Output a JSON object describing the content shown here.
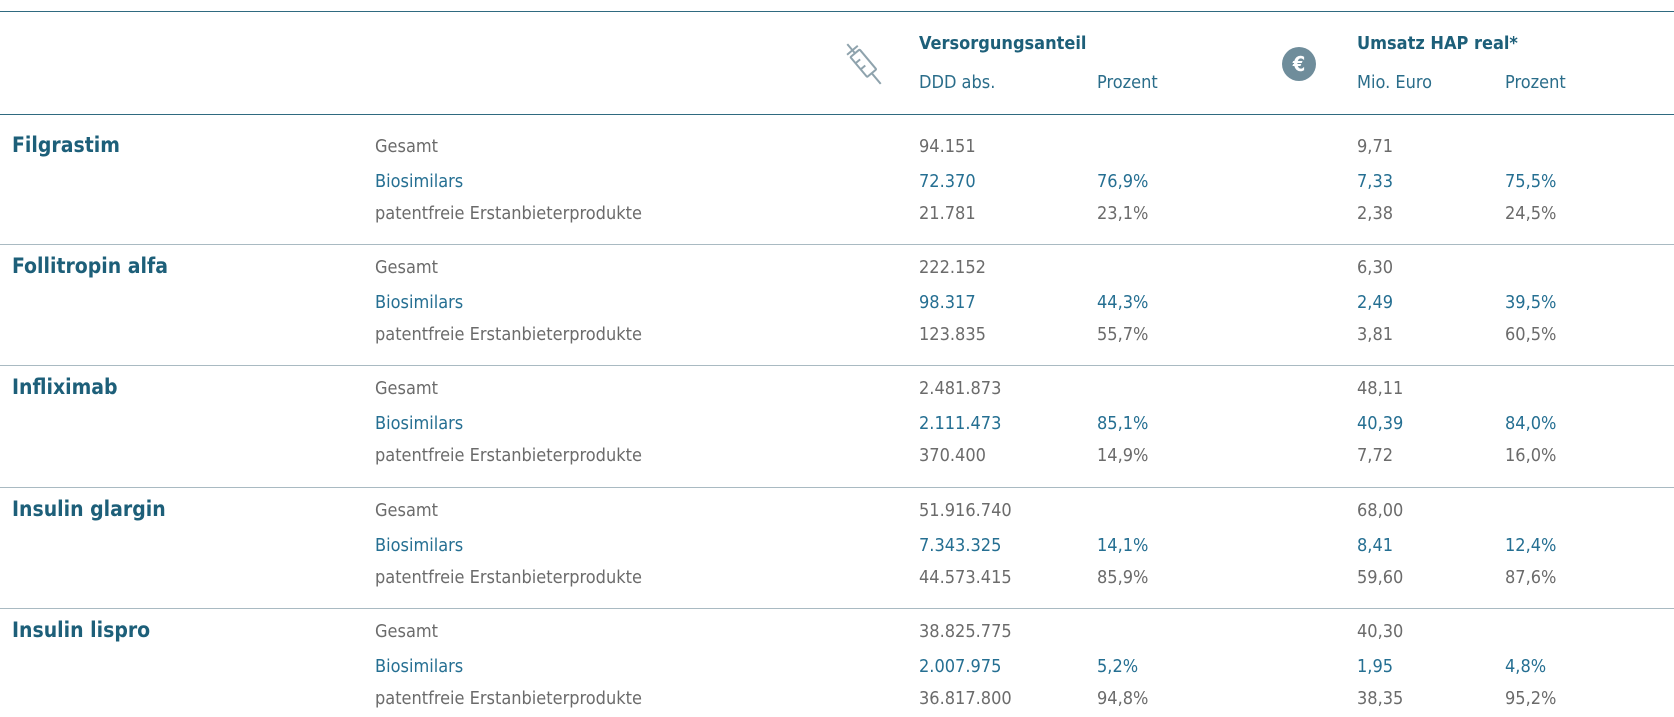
{
  "header": {
    "group1": "Versorgungsanteil",
    "group2": "Umsatz HAP real*",
    "sub1a": "DDD abs.",
    "sub1b": "Prozent",
    "sub2a": "Mio. Euro",
    "sub2b": "Prozent",
    "euro_icon": "€"
  },
  "groups": [
    {
      "name": "Filgrastim",
      "rows": [
        {
          "label": "Gesamt",
          "ddd": "94.151",
          "eur": "9,71"
        },
        {
          "label": "Biosimilars",
          "ddd": "72.370",
          "ddd_pct": "76,9%",
          "eur": "7,33",
          "eur_pct": "75,5%"
        },
        {
          "label": "patentfreie Erstanbieterprodukte",
          "ddd": "21.781",
          "ddd_pct": "23,1%",
          "eur": "2,38",
          "eur_pct": "24,5%"
        }
      ]
    },
    {
      "name": "Follitropin alfa",
      "rows": [
        {
          "label": "Gesamt",
          "ddd": "222.152",
          "eur": "6,30"
        },
        {
          "label": "Biosimilars",
          "ddd": "98.317",
          "ddd_pct": "44,3%",
          "eur": "2,49",
          "eur_pct": "39,5%"
        },
        {
          "label": "patentfreie Erstanbieterprodukte",
          "ddd": "123.835",
          "ddd_pct": "55,7%",
          "eur": "3,81",
          "eur_pct": "60,5%"
        }
      ]
    },
    {
      "name": "Infliximab",
      "rows": [
        {
          "label": "Gesamt",
          "ddd": "2.481.873",
          "eur": "48,11"
        },
        {
          "label": "Biosimilars",
          "ddd": "2.111.473",
          "ddd_pct": "85,1%",
          "eur": "40,39",
          "eur_pct": "84,0%"
        },
        {
          "label": "patentfreie Erstanbieterprodukte",
          "ddd": "370.400",
          "ddd_pct": "14,9%",
          "eur": "7,72",
          "eur_pct": "16,0%"
        }
      ]
    },
    {
      "name": "Insulin glargin",
      "rows": [
        {
          "label": "Gesamt",
          "ddd": "51.916.740",
          "eur": "68,00"
        },
        {
          "label": "Biosimilars",
          "ddd": "7.343.325",
          "ddd_pct": "14,1%",
          "eur": "8,41",
          "eur_pct": "12,4%"
        },
        {
          "label": "patentfreie Erstanbieterprodukte",
          "ddd": "44.573.415",
          "ddd_pct": "85,9%",
          "eur": "59,60",
          "eur_pct": "87,6%"
        }
      ]
    },
    {
      "name": "Insulin lispro",
      "rows": [
        {
          "label": "Gesamt",
          "ddd": "38.825.775",
          "eur": "40,30"
        },
        {
          "label": "Biosimilars",
          "ddd": "2.007.975",
          "ddd_pct": "5,2%",
          "eur": "1,95",
          "eur_pct": "4,8%"
        },
        {
          "label": "patentfreie Erstanbieterprodukte",
          "ddd": "36.817.800",
          "ddd_pct": "94,8%",
          "eur": "38,35",
          "eur_pct": "95,2%"
        }
      ]
    }
  ]
}
